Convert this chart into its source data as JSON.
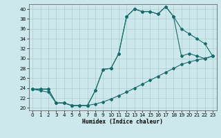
{
  "bg_color": "#cce8ec",
  "grid_color": "#aacccc",
  "line_color": "#1a6b6b",
  "xlabel": "Humidex (Indice chaleur)",
  "xlim": [
    -0.5,
    23.5
  ],
  "ylim": [
    19.5,
    41.0
  ],
  "xticks": [
    0,
    1,
    2,
    3,
    4,
    5,
    6,
    7,
    8,
    9,
    10,
    11,
    12,
    13,
    14,
    15,
    16,
    17,
    18,
    19,
    20,
    21,
    22,
    23
  ],
  "yticks": [
    20,
    22,
    24,
    26,
    28,
    30,
    32,
    34,
    36,
    38,
    40
  ],
  "curve_upper_x": [
    0,
    1,
    2,
    3,
    4,
    5,
    6,
    7,
    8,
    9,
    10,
    11,
    12,
    13,
    14,
    15,
    16,
    17,
    18,
    19,
    20,
    21,
    22,
    23
  ],
  "curve_upper_y": [
    23.8,
    23.8,
    23.8,
    21.0,
    21.0,
    20.5,
    20.5,
    20.5,
    23.5,
    27.8,
    28.0,
    31.0,
    38.5,
    40.0,
    39.5,
    39.5,
    39.0,
    40.5,
    38.5,
    36.0,
    35.0,
    34.0,
    33.0,
    30.5
  ],
  "curve_mid_x": [
    0,
    1,
    2,
    3,
    4,
    5,
    6,
    7,
    8,
    9,
    10,
    11,
    12,
    13,
    14,
    15,
    16,
    17,
    18,
    19,
    20,
    21,
    22,
    23
  ],
  "curve_mid_y": [
    23.8,
    23.8,
    23.8,
    21.0,
    21.0,
    20.5,
    20.5,
    20.5,
    23.5,
    27.8,
    28.0,
    31.0,
    38.5,
    40.0,
    39.5,
    39.5,
    39.0,
    40.5,
    38.5,
    30.5,
    31.0,
    30.5,
    30.0,
    30.5
  ],
  "curve_lower_x": [
    0,
    1,
    2,
    3,
    4,
    5,
    6,
    7,
    8,
    9,
    10,
    11,
    12,
    13,
    14,
    15,
    16,
    17,
    18,
    19,
    20,
    21,
    22,
    23
  ],
  "curve_lower_y": [
    23.8,
    23.5,
    23.2,
    21.0,
    21.0,
    20.5,
    20.5,
    20.5,
    20.8,
    21.2,
    21.8,
    22.5,
    23.2,
    24.0,
    24.8,
    25.6,
    26.4,
    27.2,
    28.0,
    28.8,
    29.3,
    29.7,
    30.0,
    30.5
  ]
}
